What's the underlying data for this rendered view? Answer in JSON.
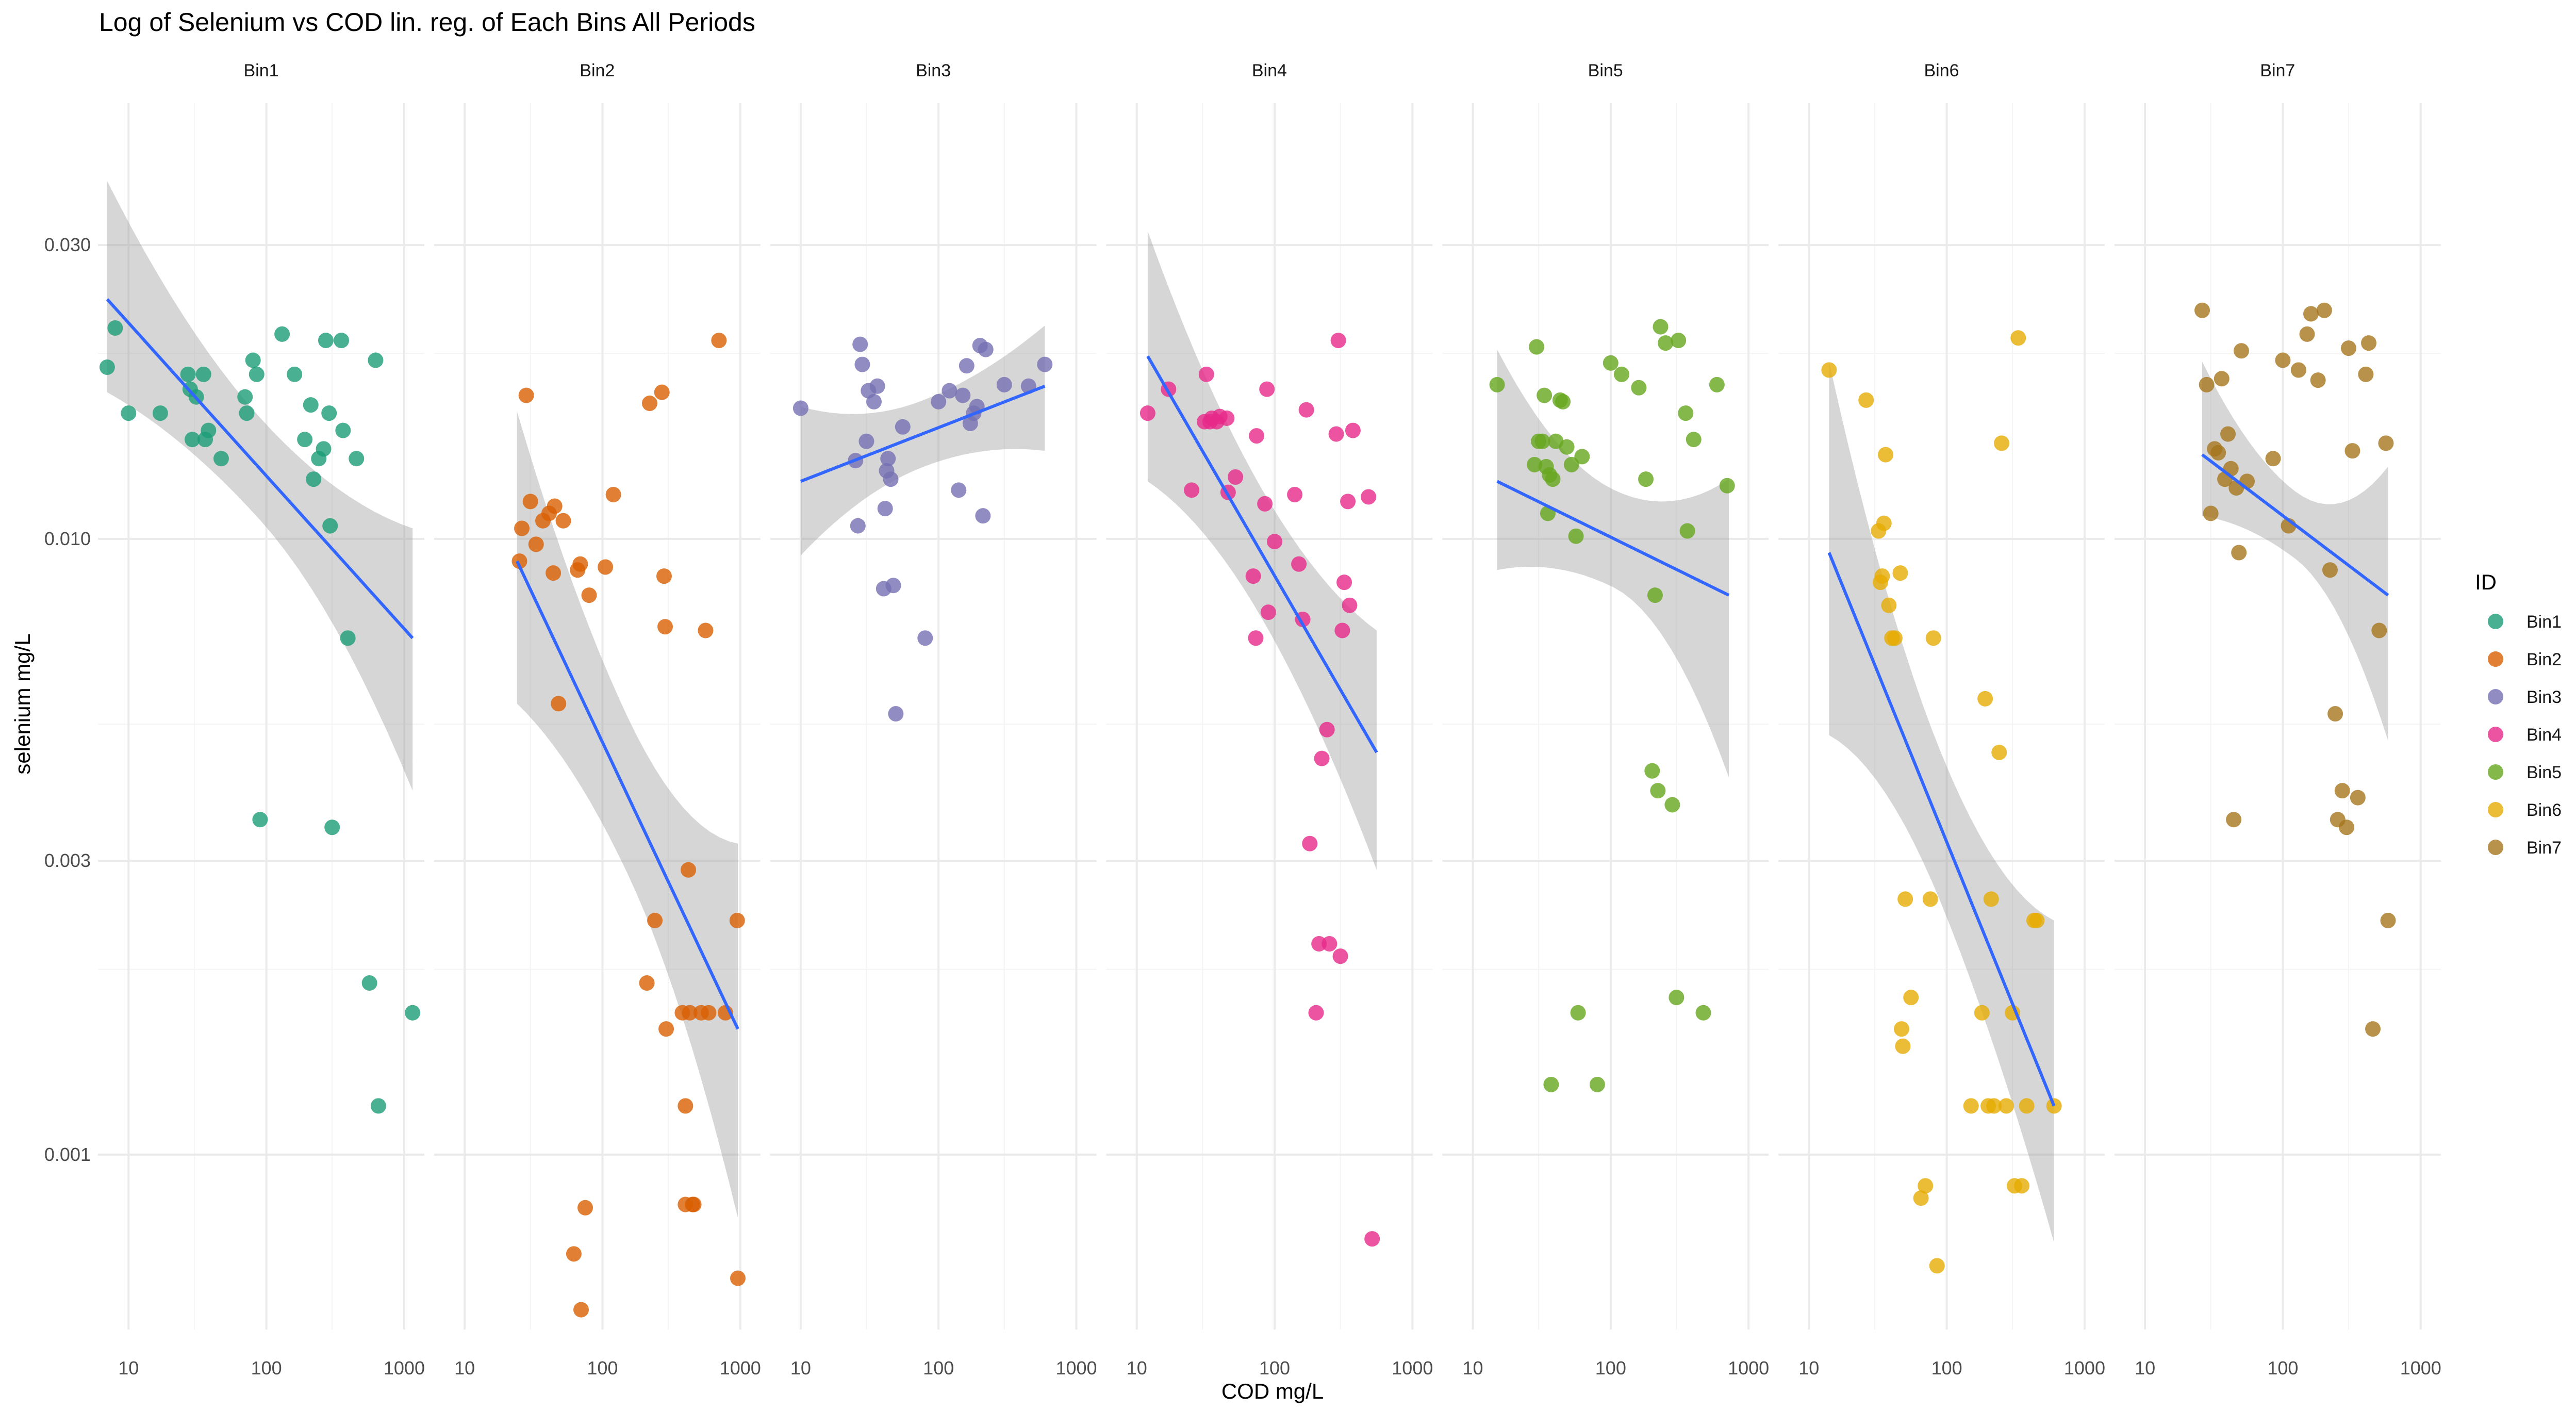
{
  "chart_data": {
    "type": "scatter",
    "title": "Log of Selenium vs COD lin. reg. of Each Bins All Periods",
    "xlabel": "COD mg/L",
    "ylabel": "selenium mg/L",
    "x_scale": "log10",
    "y_scale": "log10",
    "xlim": [
      6,
      1400
    ],
    "ylim": [
      0.00052,
      0.051
    ],
    "x_ticks": [
      10,
      100,
      1000
    ],
    "x_tick_labels": [
      "10",
      "100",
      "1000"
    ],
    "y_ticks": [
      0.001,
      0.003,
      0.01,
      0.03
    ],
    "y_tick_labels": [
      "0.001",
      "0.003",
      "0.010",
      "0.030"
    ],
    "grid": true,
    "legend": {
      "title": "ID",
      "placement": "right"
    },
    "series": [
      {
        "name": "Bin1",
        "color": "#1b9e77",
        "points": [
          [
            7,
            0.019
          ],
          [
            8,
            0.022
          ],
          [
            10,
            0.016
          ],
          [
            17,
            0.016
          ],
          [
            27,
            0.0185
          ],
          [
            28,
            0.0175
          ],
          [
            29,
            0.0145
          ],
          [
            31,
            0.017
          ],
          [
            35,
            0.0185
          ],
          [
            36,
            0.0145
          ],
          [
            38,
            0.015
          ],
          [
            47,
            0.0135
          ],
          [
            70,
            0.017
          ],
          [
            72,
            0.016
          ],
          [
            80,
            0.0195
          ],
          [
            85,
            0.0185
          ],
          [
            90,
            0.0035
          ],
          [
            130,
            0.0215
          ],
          [
            160,
            0.0185
          ],
          [
            190,
            0.0145
          ],
          [
            210,
            0.0165
          ],
          [
            220,
            0.0125
          ],
          [
            240,
            0.0135
          ],
          [
            260,
            0.014
          ],
          [
            270,
            0.021
          ],
          [
            285,
            0.016
          ],
          [
            290,
            0.0105
          ],
          [
            300,
            0.0034
          ],
          [
            350,
            0.021
          ],
          [
            360,
            0.015
          ],
          [
            390,
            0.0069
          ],
          [
            450,
            0.0135
          ],
          [
            560,
            0.0019
          ],
          [
            620,
            0.0195
          ],
          [
            650,
            0.0012
          ],
          [
            1150,
            0.0017
          ]
        ],
        "fit": {
          "x": [
            7,
            1150
          ],
          "y": [
            0.0245,
            0.0069
          ],
          "lower": [
            0.0173,
            0.0039
          ],
          "upper": [
            0.0381,
            0.0104
          ]
        }
      },
      {
        "name": "Bin2",
        "color": "#d95f02",
        "points": [
          [
            25,
            0.0092
          ],
          [
            26,
            0.0104
          ],
          [
            28,
            0.0171
          ],
          [
            30,
            0.0115
          ],
          [
            33,
            0.0098
          ],
          [
            37,
            0.0107
          ],
          [
            41,
            0.011
          ],
          [
            44,
            0.0088
          ],
          [
            45,
            0.0113
          ],
          [
            48,
            0.0054
          ],
          [
            52,
            0.0107
          ],
          [
            62,
            0.00069
          ],
          [
            66,
            0.0089
          ],
          [
            69,
            0.0091
          ],
          [
            70,
            0.00056
          ],
          [
            75,
            0.00082
          ],
          [
            80,
            0.0081
          ],
          [
            105,
            0.009
          ],
          [
            120,
            0.0118
          ],
          [
            210,
            0.0019
          ],
          [
            220,
            0.0166
          ],
          [
            240,
            0.0024
          ],
          [
            270,
            0.0173
          ],
          [
            280,
            0.0087
          ],
          [
            285,
            0.0072
          ],
          [
            290,
            0.0016
          ],
          [
            380,
            0.0017
          ],
          [
            400,
            0.0012
          ],
          [
            400,
            0.00083
          ],
          [
            420,
            0.0029
          ],
          [
            430,
            0.0017
          ],
          [
            450,
            0.00083
          ],
          [
            460,
            0.00083
          ],
          [
            520,
            0.0017
          ],
          [
            560,
            0.0071
          ],
          [
            590,
            0.0017
          ],
          [
            700,
            0.021
          ],
          [
            780,
            0.0017
          ],
          [
            950,
            0.0024
          ],
          [
            960,
            0.00063
          ]
        ],
        "fit": {
          "x": [
            24,
            960
          ],
          "y": [
            0.0092,
            0.0016
          ],
          "lower": [
            0.0054,
            0.00079
          ],
          "upper": [
            0.0161,
            0.0032
          ]
        }
      },
      {
        "name": "Bin3",
        "color": "#7570b3",
        "points": [
          [
            10,
            0.0163
          ],
          [
            25,
            0.0134
          ],
          [
            26,
            0.0105
          ],
          [
            27,
            0.0207
          ],
          [
            28,
            0.0192
          ],
          [
            30,
            0.0144
          ],
          [
            31,
            0.0174
          ],
          [
            34,
            0.0167
          ],
          [
            36,
            0.0177
          ],
          [
            40,
            0.0083
          ],
          [
            41,
            0.0112
          ],
          [
            42,
            0.0129
          ],
          [
            43,
            0.0135
          ],
          [
            45,
            0.0125
          ],
          [
            47,
            0.0084
          ],
          [
            49,
            0.0052
          ],
          [
            55,
            0.0152
          ],
          [
            80,
            0.0069
          ],
          [
            100,
            0.0167
          ],
          [
            120,
            0.0174
          ],
          [
            140,
            0.012
          ],
          [
            150,
            0.0171
          ],
          [
            160,
            0.0191
          ],
          [
            170,
            0.0154
          ],
          [
            180,
            0.016
          ],
          [
            190,
            0.0164
          ],
          [
            200,
            0.0206
          ],
          [
            210,
            0.0109
          ],
          [
            220,
            0.0203
          ],
          [
            300,
            0.0178
          ],
          [
            450,
            0.0177
          ],
          [
            590,
            0.0192
          ]
        ],
        "fit": {
          "x": [
            10,
            590
          ],
          "y": [
            0.0124,
            0.0177
          ],
          "lower": [
            0.0094,
            0.0139
          ],
          "upper": [
            0.0164,
            0.0222
          ]
        }
      },
      {
        "name": "Bin4",
        "color": "#e7298a",
        "points": [
          [
            12,
            0.016
          ],
          [
            17,
            0.0175
          ],
          [
            25,
            0.012
          ],
          [
            31,
            0.0155
          ],
          [
            32,
            0.0185
          ],
          [
            34,
            0.0155
          ],
          [
            35,
            0.0157
          ],
          [
            38,
            0.0155
          ],
          [
            40,
            0.0158
          ],
          [
            45,
            0.0157
          ],
          [
            46,
            0.0119
          ],
          [
            52,
            0.0126
          ],
          [
            70,
            0.0087
          ],
          [
            73,
            0.0069
          ],
          [
            74,
            0.0147
          ],
          [
            85,
            0.0114
          ],
          [
            88,
            0.0175
          ],
          [
            90,
            0.0076
          ],
          [
            100,
            0.0099
          ],
          [
            140,
            0.0118
          ],
          [
            150,
            0.0091
          ],
          [
            160,
            0.0074
          ],
          [
            170,
            0.0162
          ],
          [
            180,
            0.0032
          ],
          [
            200,
            0.0017
          ],
          [
            210,
            0.0022
          ],
          [
            220,
            0.0044
          ],
          [
            240,
            0.0049
          ],
          [
            250,
            0.0022
          ],
          [
            280,
            0.0148
          ],
          [
            290,
            0.021
          ],
          [
            300,
            0.0021
          ],
          [
            310,
            0.0071
          ],
          [
            320,
            0.0085
          ],
          [
            340,
            0.0115
          ],
          [
            350,
            0.0078
          ],
          [
            370,
            0.015
          ],
          [
            480,
            0.0117
          ],
          [
            510,
            0.00073
          ]
        ],
        "fit": {
          "x": [
            12,
            550
          ],
          "y": [
            0.0198,
            0.0045
          ],
          "lower": [
            0.0124,
            0.0029
          ],
          "upper": [
            0.0316,
            0.0071
          ]
        }
      },
      {
        "name": "Bin5",
        "color": "#66a61e",
        "points": [
          [
            15,
            0.0178
          ],
          [
            28,
            0.0132
          ],
          [
            29,
            0.0205
          ],
          [
            30,
            0.0144
          ],
          [
            32,
            0.0144
          ],
          [
            33,
            0.0171
          ],
          [
            34,
            0.0131
          ],
          [
            35,
            0.011
          ],
          [
            36,
            0.0127
          ],
          [
            37,
            0.0013
          ],
          [
            38,
            0.0125
          ],
          [
            40,
            0.0144
          ],
          [
            43,
            0.0168
          ],
          [
            45,
            0.0167
          ],
          [
            48,
            0.0141
          ],
          [
            52,
            0.0132
          ],
          [
            56,
            0.0101
          ],
          [
            58,
            0.0017
          ],
          [
            62,
            0.0136
          ],
          [
            80,
            0.0013
          ],
          [
            100,
            0.0193
          ],
          [
            120,
            0.0185
          ],
          [
            160,
            0.0176
          ],
          [
            180,
            0.0125
          ],
          [
            200,
            0.0042
          ],
          [
            210,
            0.0081
          ],
          [
            220,
            0.0039
          ],
          [
            230,
            0.0221
          ],
          [
            250,
            0.0208
          ],
          [
            280,
            0.0037
          ],
          [
            300,
            0.0018
          ],
          [
            310,
            0.021
          ],
          [
            350,
            0.016
          ],
          [
            360,
            0.0103
          ],
          [
            400,
            0.0145
          ],
          [
            470,
            0.0017
          ],
          [
            590,
            0.0178
          ],
          [
            700,
            0.0122
          ]
        ],
        "fit": {
          "x": [
            15,
            720
          ],
          "y": [
            0.0124,
            0.0081
          ],
          "lower": [
            0.0089,
            0.0041
          ],
          "upper": [
            0.0203,
            0.0125
          ]
        }
      },
      {
        "name": "Bin6",
        "color": "#e6ab02",
        "points": [
          [
            14,
            0.0188
          ],
          [
            26,
            0.0168
          ],
          [
            32,
            0.0103
          ],
          [
            33,
            0.0085
          ],
          [
            34,
            0.0087
          ],
          [
            35,
            0.0106
          ],
          [
            36,
            0.0137
          ],
          [
            38,
            0.0078
          ],
          [
            40,
            0.0069
          ],
          [
            42,
            0.0069
          ],
          [
            46,
            0.0088
          ],
          [
            47,
            0.0016
          ],
          [
            48,
            0.0015
          ],
          [
            50,
            0.0026
          ],
          [
            55,
            0.0018
          ],
          [
            65,
            0.00085
          ],
          [
            70,
            0.00089
          ],
          [
            76,
            0.0026
          ],
          [
            80,
            0.0069
          ],
          [
            85,
            0.00066
          ],
          [
            150,
            0.0012
          ],
          [
            180,
            0.0017
          ],
          [
            190,
            0.0055
          ],
          [
            200,
            0.0012
          ],
          [
            210,
            0.0026
          ],
          [
            220,
            0.0012
          ],
          [
            240,
            0.0045
          ],
          [
            250,
            0.0143
          ],
          [
            270,
            0.0012
          ],
          [
            300,
            0.0017
          ],
          [
            310,
            0.00089
          ],
          [
            330,
            0.0212
          ],
          [
            350,
            0.00089
          ],
          [
            380,
            0.0012
          ],
          [
            430,
            0.0024
          ],
          [
            450,
            0.0024
          ],
          [
            600,
            0.0012
          ]
        ],
        "fit": {
          "x": [
            14,
            600
          ],
          "y": [
            0.0095,
            0.0012
          ],
          "lower": [
            0.0048,
            0.00072
          ],
          "upper": [
            0.0194,
            0.0024
          ]
        }
      },
      {
        "name": "Bin7",
        "color": "#a6761d",
        "points": [
          [
            26,
            0.0235
          ],
          [
            28,
            0.0178
          ],
          [
            30,
            0.011
          ],
          [
            32,
            0.014
          ],
          [
            34,
            0.0138
          ],
          [
            36,
            0.0182
          ],
          [
            38,
            0.0125
          ],
          [
            40,
            0.0148
          ],
          [
            42,
            0.013
          ],
          [
            44,
            0.0035
          ],
          [
            46,
            0.0121
          ],
          [
            48,
            0.0095
          ],
          [
            50,
            0.0202
          ],
          [
            55,
            0.0124
          ],
          [
            85,
            0.0135
          ],
          [
            100,
            0.0195
          ],
          [
            110,
            0.0105
          ],
          [
            130,
            0.0188
          ],
          [
            150,
            0.0215
          ],
          [
            160,
            0.0232
          ],
          [
            180,
            0.0181
          ],
          [
            200,
            0.0235
          ],
          [
            220,
            0.0089
          ],
          [
            240,
            0.0052
          ],
          [
            250,
            0.0035
          ],
          [
            270,
            0.0039
          ],
          [
            290,
            0.0034
          ],
          [
            300,
            0.0204
          ],
          [
            320,
            0.0139
          ],
          [
            350,
            0.0038
          ],
          [
            400,
            0.0185
          ],
          [
            420,
            0.0208
          ],
          [
            450,
            0.0016
          ],
          [
            500,
            0.0071
          ],
          [
            560,
            0.0143
          ],
          [
            580,
            0.0024
          ]
        ],
        "fit": {
          "x": [
            26,
            580
          ],
          "y": [
            0.0137,
            0.0081
          ],
          "lower": [
            0.0109,
            0.0047
          ],
          "upper": [
            0.0194,
            0.0131
          ]
        }
      }
    ]
  }
}
